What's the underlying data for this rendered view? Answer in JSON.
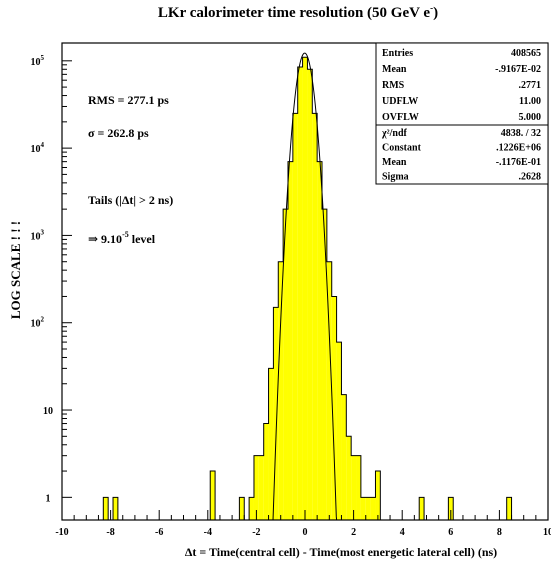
{
  "chart_data": {
    "type": "bar",
    "title_main": "LKr calorimeter time resolution (50 GeV e",
    "title_sup": "-",
    "title_close": ")",
    "xlabel": "Δt = Time(central cell) - Time(most energetic lateral cell)  (ns)",
    "ylabel": "LOG SCALE ! ! !",
    "xlim": [
      -10,
      10
    ],
    "ylim": [
      0.55,
      160000
    ],
    "yscale": "log",
    "grid": false,
    "x_ticks": [
      "-10",
      "-8",
      "-6",
      "-4",
      "-2",
      "0",
      "2",
      "4",
      "6",
      "8",
      "10"
    ],
    "y_ticks": [
      {
        "value": 1,
        "label": "1",
        "sup": ""
      },
      {
        "value": 10,
        "label": "10",
        "sup": ""
      },
      {
        "value": 100,
        "label": "10",
        "sup": "2"
      },
      {
        "value": 1000,
        "label": "10",
        "sup": "3"
      },
      {
        "value": 10000,
        "label": "10",
        "sup": "4"
      },
      {
        "value": 100000,
        "label": "10",
        "sup": "5"
      }
    ],
    "bin_width": 0.2,
    "histogram": [
      {
        "x": -8.2,
        "y": 1
      },
      {
        "x": -7.8,
        "y": 1
      },
      {
        "x": -3.8,
        "y": 2
      },
      {
        "x": -2.6,
        "y": 1
      },
      {
        "x": -2.2,
        "y": 1
      },
      {
        "x": -2.0,
        "y": 3
      },
      {
        "x": -1.8,
        "y": 3
      },
      {
        "x": -1.6,
        "y": 7
      },
      {
        "x": -1.4,
        "y": 30
      },
      {
        "x": -1.2,
        "y": 150
      },
      {
        "x": -1.0,
        "y": 500
      },
      {
        "x": -0.8,
        "y": 2000
      },
      {
        "x": -0.6,
        "y": 7000
      },
      {
        "x": -0.4,
        "y": 25000
      },
      {
        "x": -0.2,
        "y": 85000
      },
      {
        "x": 0.0,
        "y": 110000
      },
      {
        "x": 0.2,
        "y": 80000
      },
      {
        "x": 0.4,
        "y": 25000
      },
      {
        "x": 0.6,
        "y": 7000
      },
      {
        "x": 0.8,
        "y": 2000
      },
      {
        "x": 1.0,
        "y": 500
      },
      {
        "x": 1.2,
        "y": 200
      },
      {
        "x": 1.4,
        "y": 60
      },
      {
        "x": 1.6,
        "y": 15
      },
      {
        "x": 1.8,
        "y": 5
      },
      {
        "x": 2.0,
        "y": 3
      },
      {
        "x": 2.2,
        "y": 3
      },
      {
        "x": 2.4,
        "y": 1
      },
      {
        "x": 2.6,
        "y": 1
      },
      {
        "x": 2.8,
        "y": 1
      },
      {
        "x": 3.0,
        "y": 2
      },
      {
        "x": 4.8,
        "y": 1
      },
      {
        "x": 6.0,
        "y": 1
      },
      {
        "x": 8.4,
        "y": 1
      }
    ],
    "fit": {
      "function": "gaussian",
      "constant": 122600,
      "mean": -0.01176,
      "sigma": 0.2628,
      "x_range": [
        -1.4,
        1.4
      ]
    },
    "annotations": [
      {
        "text": "RMS = 277.1 ps"
      },
      {
        "text": "σ = 262.8 ps"
      },
      {
        "text": "Tails (|Δt| > 2 ns)"
      },
      {
        "text": "⇒ 9.10",
        "sup": "-5",
        "after": " level"
      }
    ],
    "stats_box": {
      "rows": [
        {
          "label": "Entries",
          "value": "408565"
        },
        {
          "label": "Mean",
          "value": "-.9167E-02"
        },
        {
          "label": "RMS",
          "value": ".2771"
        },
        {
          "label": "UDFLW",
          "value": "11.00"
        },
        {
          "label": "OVFLW",
          "value": "5.000"
        }
      ],
      "fit_rows": [
        {
          "label": "χ²/ndf",
          "value": "4838.   /   32"
        },
        {
          "label": "Constant",
          "value": ".1226E+06"
        },
        {
          "label": "Mean",
          "value": "-.1176E-01"
        },
        {
          "label": "Sigma",
          "value": ".2628"
        }
      ]
    },
    "colors": {
      "fill": "#ffff00",
      "line": "#000000",
      "background": "#ffffff"
    }
  }
}
